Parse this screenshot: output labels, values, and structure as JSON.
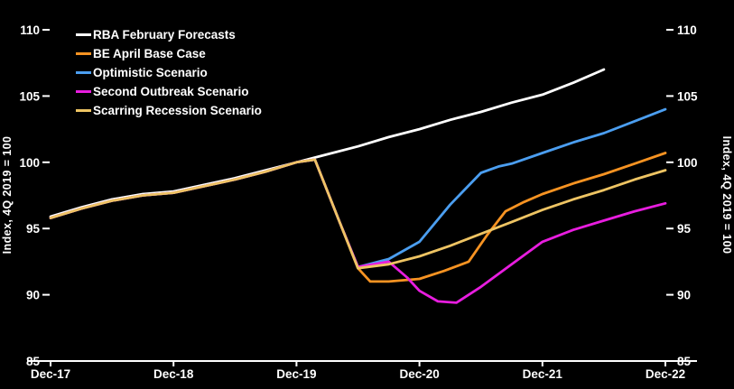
{
  "chart_data": {
    "type": "line",
    "title": "",
    "ylabel_left": "Index, 4Q 2019 = 100",
    "ylabel_right": "Index, 4Q 2019 = 100",
    "ylim": [
      85,
      110
    ],
    "yticks": [
      85,
      90,
      95,
      100,
      105,
      110
    ],
    "xlim": [
      0,
      5
    ],
    "xtick_positions": [
      0,
      1,
      2,
      3,
      4,
      5
    ],
    "xtick_labels": [
      "Dec-17",
      "Dec-18",
      "Dec-19",
      "Dec-20",
      "Dec-21",
      "Dec-22"
    ],
    "background_color": "#000000",
    "axis_color": "#ffffff",
    "grid": false,
    "legend_position": "top-left",
    "series": [
      {
        "id": "rba",
        "name": "RBA February Forecasts",
        "color": "#ffffff",
        "x": [
          0,
          0.25,
          0.5,
          0.75,
          1,
          1.25,
          1.5,
          1.75,
          2,
          2.25,
          2.5,
          2.75,
          3,
          3.25,
          3.5,
          3.75,
          4,
          4.25,
          4.5
        ],
        "values": [
          95.9,
          96.6,
          97.2,
          97.6,
          97.8,
          98.3,
          98.8,
          99.4,
          100,
          100.6,
          101.2,
          101.9,
          102.5,
          103.2,
          103.8,
          104.5,
          105.1,
          106.0,
          107.0
        ]
      },
      {
        "id": "base-case",
        "name": "BE April Base Case",
        "color": "#f79322",
        "x": [
          0,
          0.25,
          0.5,
          0.75,
          1,
          1.25,
          1.5,
          1.75,
          2,
          2.15,
          2.35,
          2.5,
          2.6,
          2.75,
          3,
          3.2,
          3.4,
          3.55,
          3.7,
          3.85,
          4,
          4.25,
          4.5,
          4.75,
          5
        ],
        "values": [
          95.8,
          96.5,
          97.1,
          97.5,
          97.7,
          98.2,
          98.7,
          99.3,
          100,
          100.2,
          95.5,
          92.0,
          91.0,
          91.0,
          91.2,
          91.8,
          92.5,
          94.5,
          96.3,
          97.0,
          97.6,
          98.4,
          99.1,
          99.9,
          100.7
        ]
      },
      {
        "id": "optimistic",
        "name": "Optimistic Scenario",
        "color": "#4b9ef0",
        "x": [
          0,
          0.25,
          0.5,
          0.75,
          1,
          1.25,
          1.5,
          1.75,
          2,
          2.15,
          2.35,
          2.5,
          2.75,
          3,
          3.25,
          3.5,
          3.65,
          3.75,
          4,
          4.25,
          4.5,
          4.75,
          5
        ],
        "values": [
          95.8,
          96.5,
          97.1,
          97.5,
          97.7,
          98.2,
          98.7,
          99.3,
          100,
          100.2,
          95.5,
          92.1,
          92.7,
          94.0,
          96.8,
          99.2,
          99.7,
          99.9,
          100.7,
          101.5,
          102.2,
          103.1,
          104.0
        ]
      },
      {
        "id": "second-outbreak",
        "name": "Second Outbreak Scenario",
        "color": "#e81ddf",
        "x": [
          0,
          0.25,
          0.5,
          0.75,
          1,
          1.25,
          1.5,
          1.75,
          2,
          2.15,
          2.35,
          2.5,
          2.75,
          2.9,
          3,
          3.15,
          3.3,
          3.5,
          3.75,
          4,
          4.25,
          4.5,
          4.75,
          5
        ],
        "values": [
          95.8,
          96.5,
          97.1,
          97.5,
          97.7,
          98.2,
          98.7,
          99.3,
          100,
          100.2,
          95.5,
          92.1,
          92.5,
          91.3,
          90.3,
          89.5,
          89.4,
          90.6,
          92.3,
          94.0,
          94.9,
          95.6,
          96.3,
          96.9
        ]
      },
      {
        "id": "scarring",
        "name": "Scarring Recession Scenario",
        "color": "#eec463",
        "x": [
          0,
          0.25,
          0.5,
          0.75,
          1,
          1.25,
          1.5,
          1.75,
          2,
          2.15,
          2.35,
          2.5,
          2.75,
          3,
          3.25,
          3.5,
          3.75,
          4,
          4.25,
          4.5,
          4.75,
          5
        ],
        "values": [
          95.8,
          96.5,
          97.1,
          97.5,
          97.7,
          98.2,
          98.7,
          99.3,
          100,
          100.2,
          95.5,
          92.0,
          92.3,
          92.9,
          93.7,
          94.6,
          95.5,
          96.4,
          97.2,
          97.9,
          98.7,
          99.4
        ]
      }
    ]
  }
}
